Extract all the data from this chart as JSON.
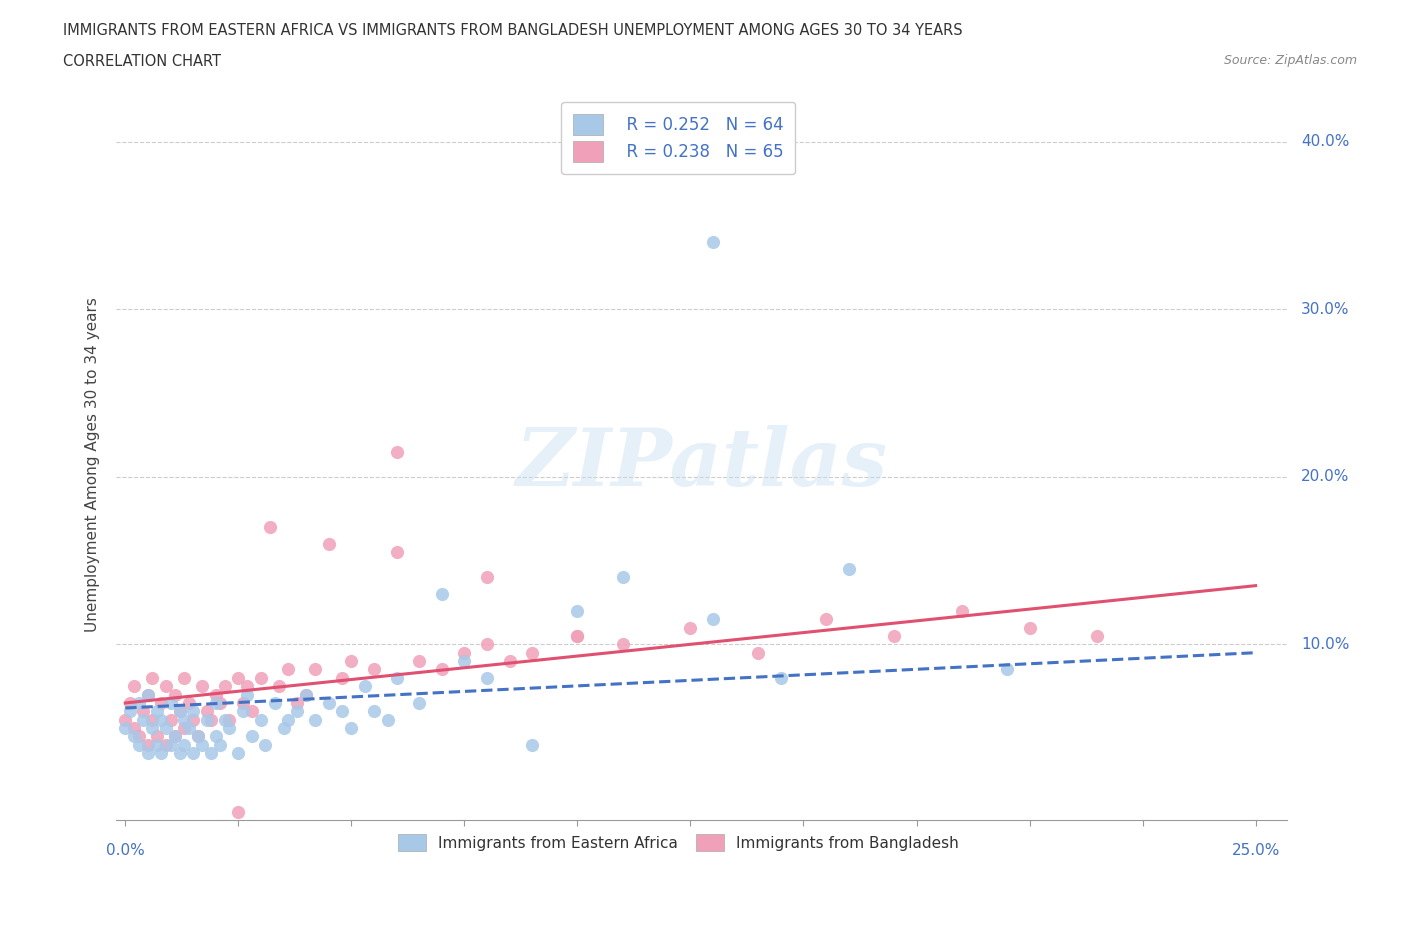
{
  "title_line1": "IMMIGRANTS FROM EASTERN AFRICA VS IMMIGRANTS FROM BANGLADESH UNEMPLOYMENT AMONG AGES 30 TO 34 YEARS",
  "title_line2": "CORRELATION CHART",
  "source_text": "Source: ZipAtlas.com",
  "ylabel": "Unemployment Among Ages 30 to 34 years",
  "watermark": "ZIPatlas",
  "color_blue": "#a8c8e8",
  "color_pink": "#f0a0b8",
  "trendline_blue": "#4472c4",
  "trendline_pink": "#e05070",
  "xlim": [
    0.0,
    0.25
  ],
  "ylim": [
    -0.005,
    0.42
  ],
  "ytick_vals": [
    0.1,
    0.2,
    0.3,
    0.4
  ],
  "ytick_labels": [
    "10.0%",
    "20.0%",
    "30.0%",
    "40.0%"
  ],
  "eastern_africa_x": [
    0.0,
    0.001,
    0.002,
    0.003,
    0.003,
    0.004,
    0.005,
    0.005,
    0.006,
    0.007,
    0.007,
    0.008,
    0.008,
    0.009,
    0.01,
    0.01,
    0.011,
    0.012,
    0.012,
    0.013,
    0.013,
    0.014,
    0.015,
    0.015,
    0.016,
    0.017,
    0.018,
    0.019,
    0.02,
    0.02,
    0.021,
    0.022,
    0.023,
    0.025,
    0.026,
    0.027,
    0.028,
    0.03,
    0.031,
    0.033,
    0.035,
    0.036,
    0.038,
    0.04,
    0.042,
    0.045,
    0.048,
    0.05,
    0.053,
    0.055,
    0.058,
    0.06,
    0.065,
    0.07,
    0.075,
    0.08,
    0.09,
    0.1,
    0.11,
    0.13,
    0.145,
    0.16,
    0.195,
    0.13
  ],
  "eastern_africa_y": [
    0.05,
    0.06,
    0.045,
    0.04,
    0.065,
    0.055,
    0.035,
    0.07,
    0.05,
    0.04,
    0.06,
    0.035,
    0.055,
    0.05,
    0.04,
    0.065,
    0.045,
    0.035,
    0.06,
    0.04,
    0.055,
    0.05,
    0.035,
    0.06,
    0.045,
    0.04,
    0.055,
    0.035,
    0.065,
    0.045,
    0.04,
    0.055,
    0.05,
    0.035,
    0.06,
    0.07,
    0.045,
    0.055,
    0.04,
    0.065,
    0.05,
    0.055,
    0.06,
    0.07,
    0.055,
    0.065,
    0.06,
    0.05,
    0.075,
    0.06,
    0.055,
    0.08,
    0.065,
    0.13,
    0.09,
    0.08,
    0.04,
    0.12,
    0.14,
    0.115,
    0.08,
    0.145,
    0.085,
    0.34
  ],
  "bangladesh_x": [
    0.0,
    0.001,
    0.002,
    0.002,
    0.003,
    0.004,
    0.005,
    0.005,
    0.006,
    0.006,
    0.007,
    0.008,
    0.009,
    0.009,
    0.01,
    0.011,
    0.011,
    0.012,
    0.013,
    0.013,
    0.014,
    0.015,
    0.016,
    0.017,
    0.018,
    0.019,
    0.02,
    0.021,
    0.022,
    0.023,
    0.025,
    0.026,
    0.027,
    0.028,
    0.03,
    0.032,
    0.034,
    0.036,
    0.038,
    0.04,
    0.042,
    0.045,
    0.048,
    0.05,
    0.055,
    0.06,
    0.065,
    0.07,
    0.075,
    0.08,
    0.085,
    0.09,
    0.1,
    0.11,
    0.125,
    0.14,
    0.155,
    0.17,
    0.185,
    0.2,
    0.215,
    0.06,
    0.08,
    0.1,
    0.025
  ],
  "bangladesh_y": [
    0.055,
    0.065,
    0.05,
    0.075,
    0.045,
    0.06,
    0.04,
    0.07,
    0.055,
    0.08,
    0.045,
    0.065,
    0.04,
    0.075,
    0.055,
    0.045,
    0.07,
    0.06,
    0.05,
    0.08,
    0.065,
    0.055,
    0.045,
    0.075,
    0.06,
    0.055,
    0.07,
    0.065,
    0.075,
    0.055,
    0.08,
    0.065,
    0.075,
    0.06,
    0.08,
    0.17,
    0.075,
    0.085,
    0.065,
    0.07,
    0.085,
    0.16,
    0.08,
    0.09,
    0.085,
    0.215,
    0.09,
    0.085,
    0.095,
    0.1,
    0.09,
    0.095,
    0.105,
    0.1,
    0.11,
    0.095,
    0.115,
    0.105,
    0.12,
    0.11,
    0.105,
    0.155,
    0.14,
    0.105,
    0.0
  ]
}
